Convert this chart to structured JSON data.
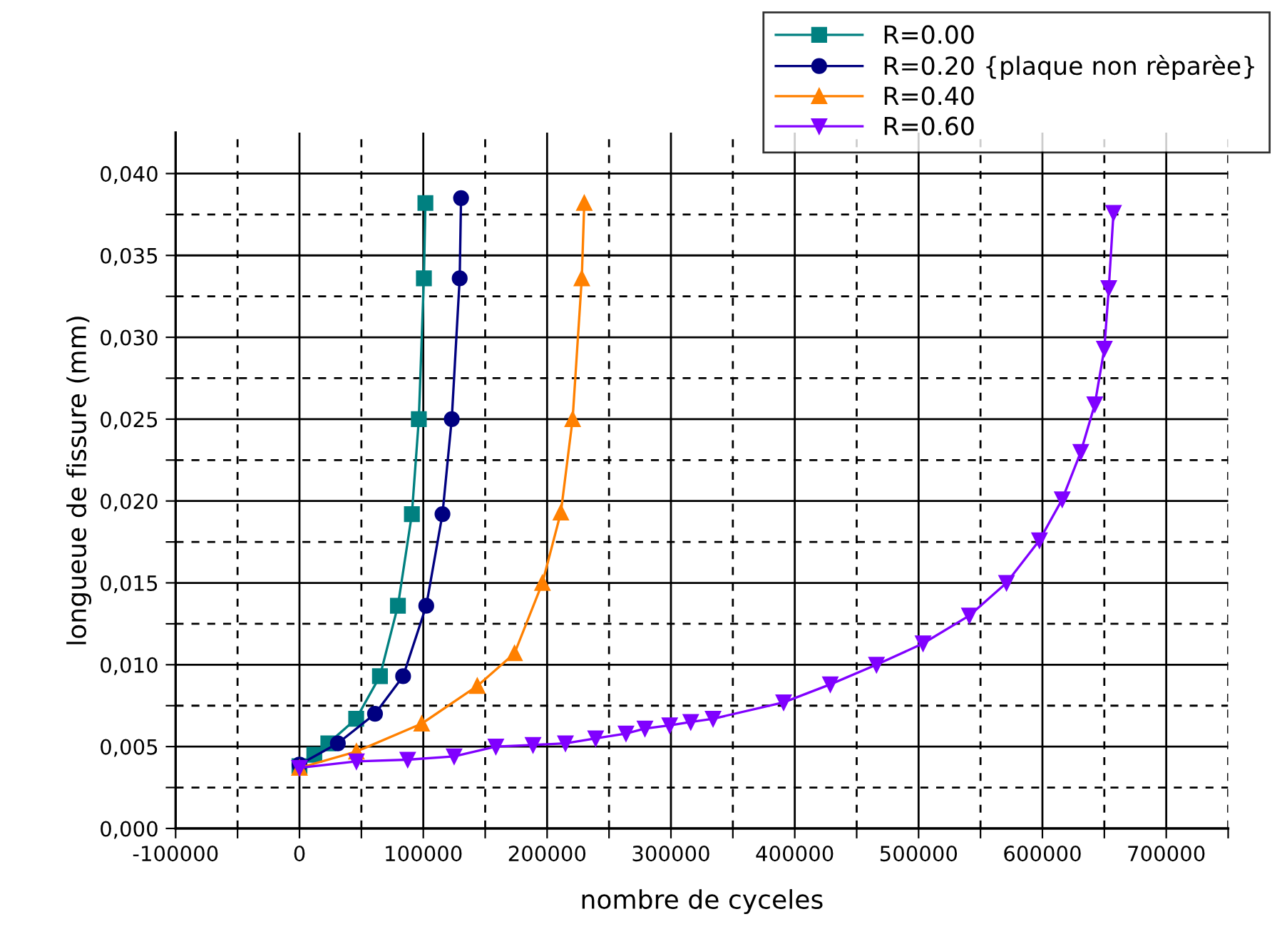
{
  "chart_data": {
    "type": "line",
    "xlabel": "nombre de cyceles",
    "ylabel": "longueue de fissure (mm)",
    "xlim": [
      -100000,
      750000
    ],
    "xticks": [
      -100000,
      {
        "value": -50000,
        "label": null
      },
      0,
      {
        "value": 50000,
        "label": null
      },
      100000,
      {
        "value": 150000,
        "label": null
      },
      200000,
      {
        "value": 250000,
        "label": null
      },
      300000,
      {
        "value": 350000,
        "label": null
      },
      400000,
      {
        "value": 450000,
        "label": null
      },
      500000,
      {
        "value": 550000,
        "label": null
      },
      600000,
      {
        "value": 650000,
        "label": null
      },
      700000,
      {
        "value": 750000,
        "label": null
      }
    ],
    "ylim": [
      0,
      0.0425
    ],
    "yticks": [
      {
        "value": 0,
        "label": "0,000"
      },
      {
        "value": 0.0025,
        "label": null
      },
      {
        "value": 0.005,
        "label": "0,005"
      },
      {
        "value": 0.0075,
        "label": null
      },
      {
        "value": 0.01,
        "label": "0,010"
      },
      {
        "value": 0.0125,
        "label": null
      },
      {
        "value": 0.015,
        "label": "0,015"
      },
      {
        "value": 0.0175,
        "label": null
      },
      {
        "value": 0.02,
        "label": "0,020"
      },
      {
        "value": 0.0225,
        "label": null
      },
      {
        "value": 0.025,
        "label": "0,025"
      },
      {
        "value": 0.0275,
        "label": null
      },
      {
        "value": 0.03,
        "label": "0,030"
      },
      {
        "value": 0.0325,
        "label": null
      },
      {
        "value": 0.035,
        "label": "0,035"
      },
      {
        "value": 0.0375,
        "label": null
      },
      {
        "value": 0.04,
        "label": "0,040"
      }
    ],
    "grid": true,
    "legend": "top right",
    "line_style": "solid",
    "series": [
      {
        "name": "R=0.00",
        "color": "#008080",
        "marker": "square",
        "x": [
          0,
          12000,
          23300,
          45800,
          65000,
          79500,
          90800,
          96400,
          100500,
          101700
        ],
        "values": [
          0.0038,
          0.0045,
          0.0052,
          0.0067,
          0.0093,
          0.0136,
          0.0192,
          0.025,
          0.0336,
          0.0382
        ]
      },
      {
        "name": "R=0.20 {plaque non rèparèe}",
        "color": "#000080",
        "marker": "circle",
        "x": [
          0,
          31000,
          61000,
          83700,
          102400,
          115500,
          123000,
          129400,
          130500
        ],
        "values": [
          0.0039,
          0.0052,
          0.007,
          0.0093,
          0.0136,
          0.0192,
          0.025,
          0.0336,
          0.0385
        ]
      },
      {
        "name": "R=0.40",
        "color": "#ff8000",
        "marker": "triangle",
        "x": [
          0,
          46000,
          98700,
          143600,
          173700,
          196200,
          211100,
          220600,
          228000,
          230000
        ],
        "values": [
          0.0037,
          0.0047,
          0.0064,
          0.0087,
          0.0107,
          0.015,
          0.0193,
          0.025,
          0.0336,
          0.0382
        ]
      },
      {
        "name": "R=0.60",
        "color": "#8000ff",
        "marker": "triangle_down",
        "x": [
          0,
          46000,
          87400,
          124900,
          158600,
          188600,
          214800,
          239200,
          263700,
          279000,
          299000,
          316000,
          334000,
          391000,
          428700,
          466000,
          503600,
          541000,
          571000,
          597600,
          616000,
          631000,
          642300,
          650000,
          653600,
          657400
        ],
        "values": [
          0.0037,
          0.0041,
          0.0042,
          0.0044,
          0.005,
          0.0051,
          0.0052,
          0.0055,
          0.0058,
          0.0061,
          0.0063,
          0.0065,
          0.0067,
          0.0077,
          0.0088,
          0.01,
          0.0113,
          0.013,
          0.015,
          0.0176,
          0.0201,
          0.023,
          0.0259,
          0.0293,
          0.033,
          0.0376
        ]
      }
    ]
  }
}
